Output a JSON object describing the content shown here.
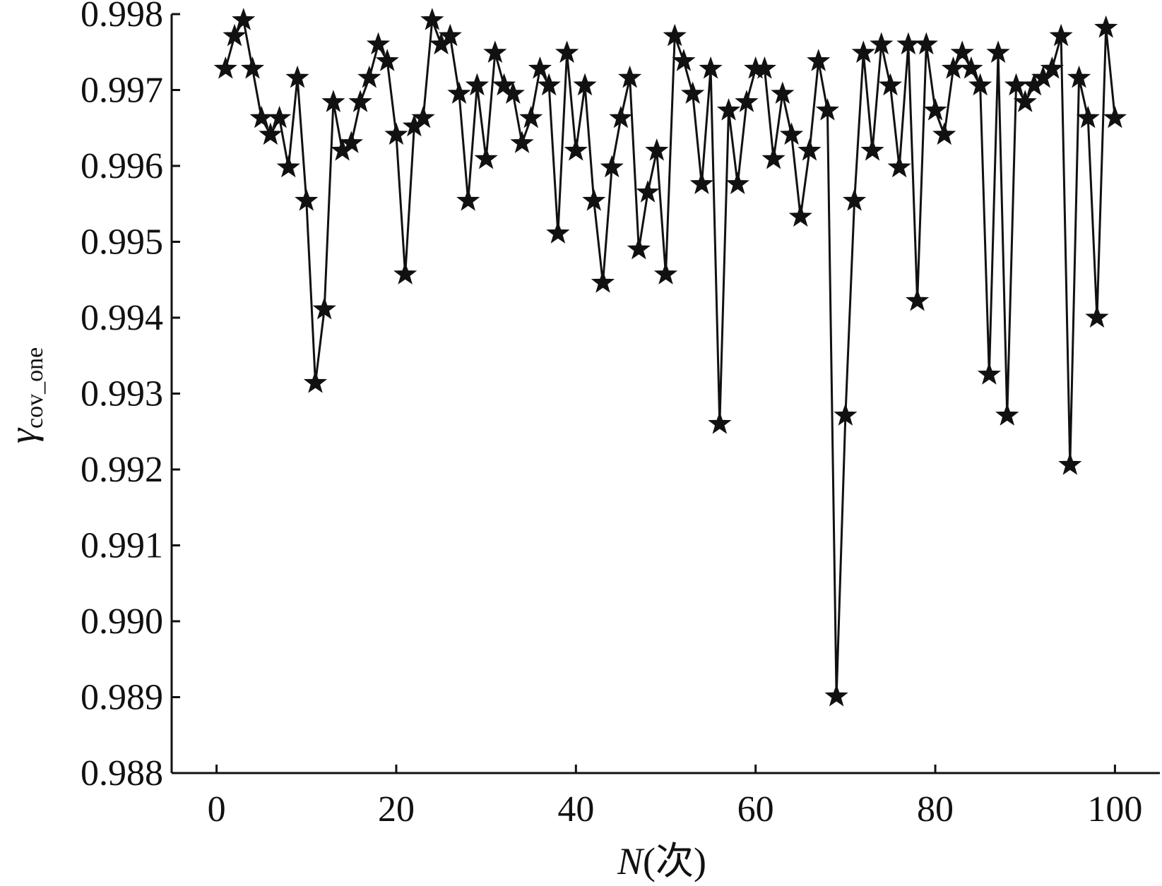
{
  "chart_data": {
    "type": "line",
    "title": "",
    "xlabel": "N(次)",
    "xlabel_parts": {
      "main": "N",
      "suffix": "(次)"
    },
    "ylabel": "γcov_one",
    "ylabel_parts": {
      "main": "γ",
      "sub": "cov_one"
    },
    "xlim": [
      -5,
      105
    ],
    "ylim": [
      0.988,
      0.998
    ],
    "xticks": [
      0,
      20,
      40,
      60,
      80,
      100
    ],
    "xtick_labels": [
      "0",
      "20",
      "40",
      "60",
      "80",
      "100"
    ],
    "yticks": [
      0.988,
      0.989,
      0.99,
      0.991,
      0.992,
      0.993,
      0.994,
      0.995,
      0.996,
      0.997,
      0.998
    ],
    "ytick_labels": [
      "0.988",
      "0.989",
      "0.990",
      "0.991",
      "0.992",
      "0.993",
      "0.994",
      "0.995",
      "0.996",
      "0.997",
      "0.998"
    ],
    "grid": false,
    "marker": "star",
    "color": "#111111",
    "x": [
      1,
      2,
      3,
      4,
      5,
      6,
      7,
      8,
      9,
      10,
      11,
      12,
      13,
      14,
      15,
      16,
      17,
      18,
      19,
      20,
      21,
      22,
      23,
      24,
      25,
      26,
      27,
      28,
      29,
      30,
      31,
      32,
      33,
      34,
      35,
      36,
      37,
      38,
      39,
      40,
      41,
      42,
      43,
      44,
      45,
      46,
      47,
      48,
      49,
      50,
      51,
      52,
      53,
      54,
      55,
      56,
      57,
      58,
      59,
      60,
      61,
      62,
      63,
      64,
      65,
      66,
      67,
      68,
      69,
      70,
      71,
      72,
      73,
      74,
      75,
      76,
      77,
      78,
      79,
      80,
      81,
      82,
      83,
      84,
      85,
      86,
      87,
      88,
      89,
      90,
      91,
      92,
      93,
      94,
      95,
      96,
      97,
      98,
      99,
      100
    ],
    "values": [
      0.99728,
      0.99771,
      0.99792,
      0.99728,
      0.99663,
      0.99641,
      0.99663,
      0.99598,
      0.99716,
      0.99554,
      0.99314,
      0.99411,
      0.99684,
      0.9962,
      0.9963,
      0.99684,
      0.99716,
      0.9976,
      0.99738,
      0.99641,
      0.99457,
      0.99652,
      0.99663,
      0.99792,
      0.9976,
      0.99771,
      0.99695,
      0.99554,
      0.99706,
      0.99609,
      0.99749,
      0.99706,
      0.99695,
      0.9963,
      0.99663,
      0.99728,
      0.99706,
      0.99511,
      0.99749,
      0.9962,
      0.99706,
      0.99554,
      0.99446,
      0.99598,
      0.99663,
      0.99716,
      0.9949,
      0.99565,
      0.9962,
      0.99457,
      0.99771,
      0.99738,
      0.99695,
      0.99576,
      0.99728,
      0.9926,
      0.99673,
      0.99576,
      0.99684,
      0.99728,
      0.99728,
      0.99609,
      0.99695,
      0.99641,
      0.99533,
      0.9962,
      0.99738,
      0.99673,
      0.98901,
      0.99271,
      0.99554,
      0.99749,
      0.9962,
      0.9976,
      0.99706,
      0.99598,
      0.9976,
      0.99422,
      0.9976,
      0.99673,
      0.99641,
      0.99728,
      0.99749,
      0.99728,
      0.99706,
      0.99325,
      0.99749,
      0.99271,
      0.99706,
      0.99684,
      0.99706,
      0.99716,
      0.99728,
      0.99771,
      0.99206,
      0.99716,
      0.99663,
      0.994,
      0.99782,
      0.99663
    ]
  }
}
